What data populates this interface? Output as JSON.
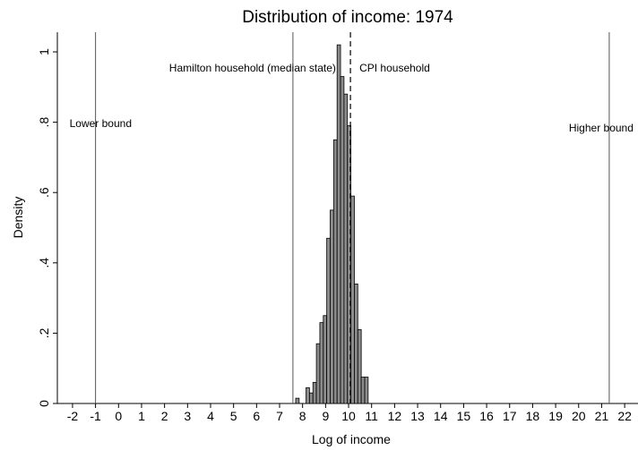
{
  "chart_data": {
    "type": "histogram",
    "title": "Distribution of income: 1974",
    "x_label": "Log of income",
    "y_label": "Density",
    "bins": [
      7.7,
      7.85,
      8.0,
      8.15,
      8.3,
      8.45,
      8.6,
      8.75,
      8.9,
      9.05,
      9.2,
      9.35,
      9.5,
      9.65,
      9.8,
      9.95,
      10.1,
      10.25,
      10.4,
      10.55,
      10.7,
      10.85
    ],
    "values": [
      0.015,
      0,
      0,
      0.045,
      0.03,
      0.06,
      0.17,
      0.23,
      0.25,
      0.47,
      0.55,
      0.75,
      1.02,
      0.93,
      0.88,
      0.79,
      0.59,
      0.34,
      0.21,
      0.075,
      0.075
    ],
    "color": "#8c8c8c",
    "xlim": [
      -2.66,
      22.58
    ],
    "xticks": [
      -2,
      -1,
      0,
      1,
      2,
      3,
      4,
      5,
      6,
      7,
      8,
      9,
      10,
      11,
      12,
      13,
      14,
      15,
      16,
      17,
      18,
      19,
      20,
      21,
      22
    ],
    "ylim": [
      0,
      1.056
    ],
    "yticks": [
      0,
      {
        "value": 0.2,
        "label": ".2"
      },
      {
        "value": 0.4,
        "label": ".4"
      },
      {
        "value": 0.6,
        "label": ".6"
      },
      {
        "value": 0.8,
        "label": ".8"
      },
      {
        "value": 1,
        "label": "1"
      }
    ],
    "annotations": [
      {
        "x": -1,
        "label": "Lower bound",
        "dashed": false
      },
      {
        "x": 7.58,
        "label": "Hamilton household (median state)",
        "dashed": false
      },
      {
        "x": 10.08,
        "label": "CPI household",
        "dashed": true
      },
      {
        "x": 21.33,
        "label": "Higher bound",
        "dashed": false
      }
    ]
  }
}
